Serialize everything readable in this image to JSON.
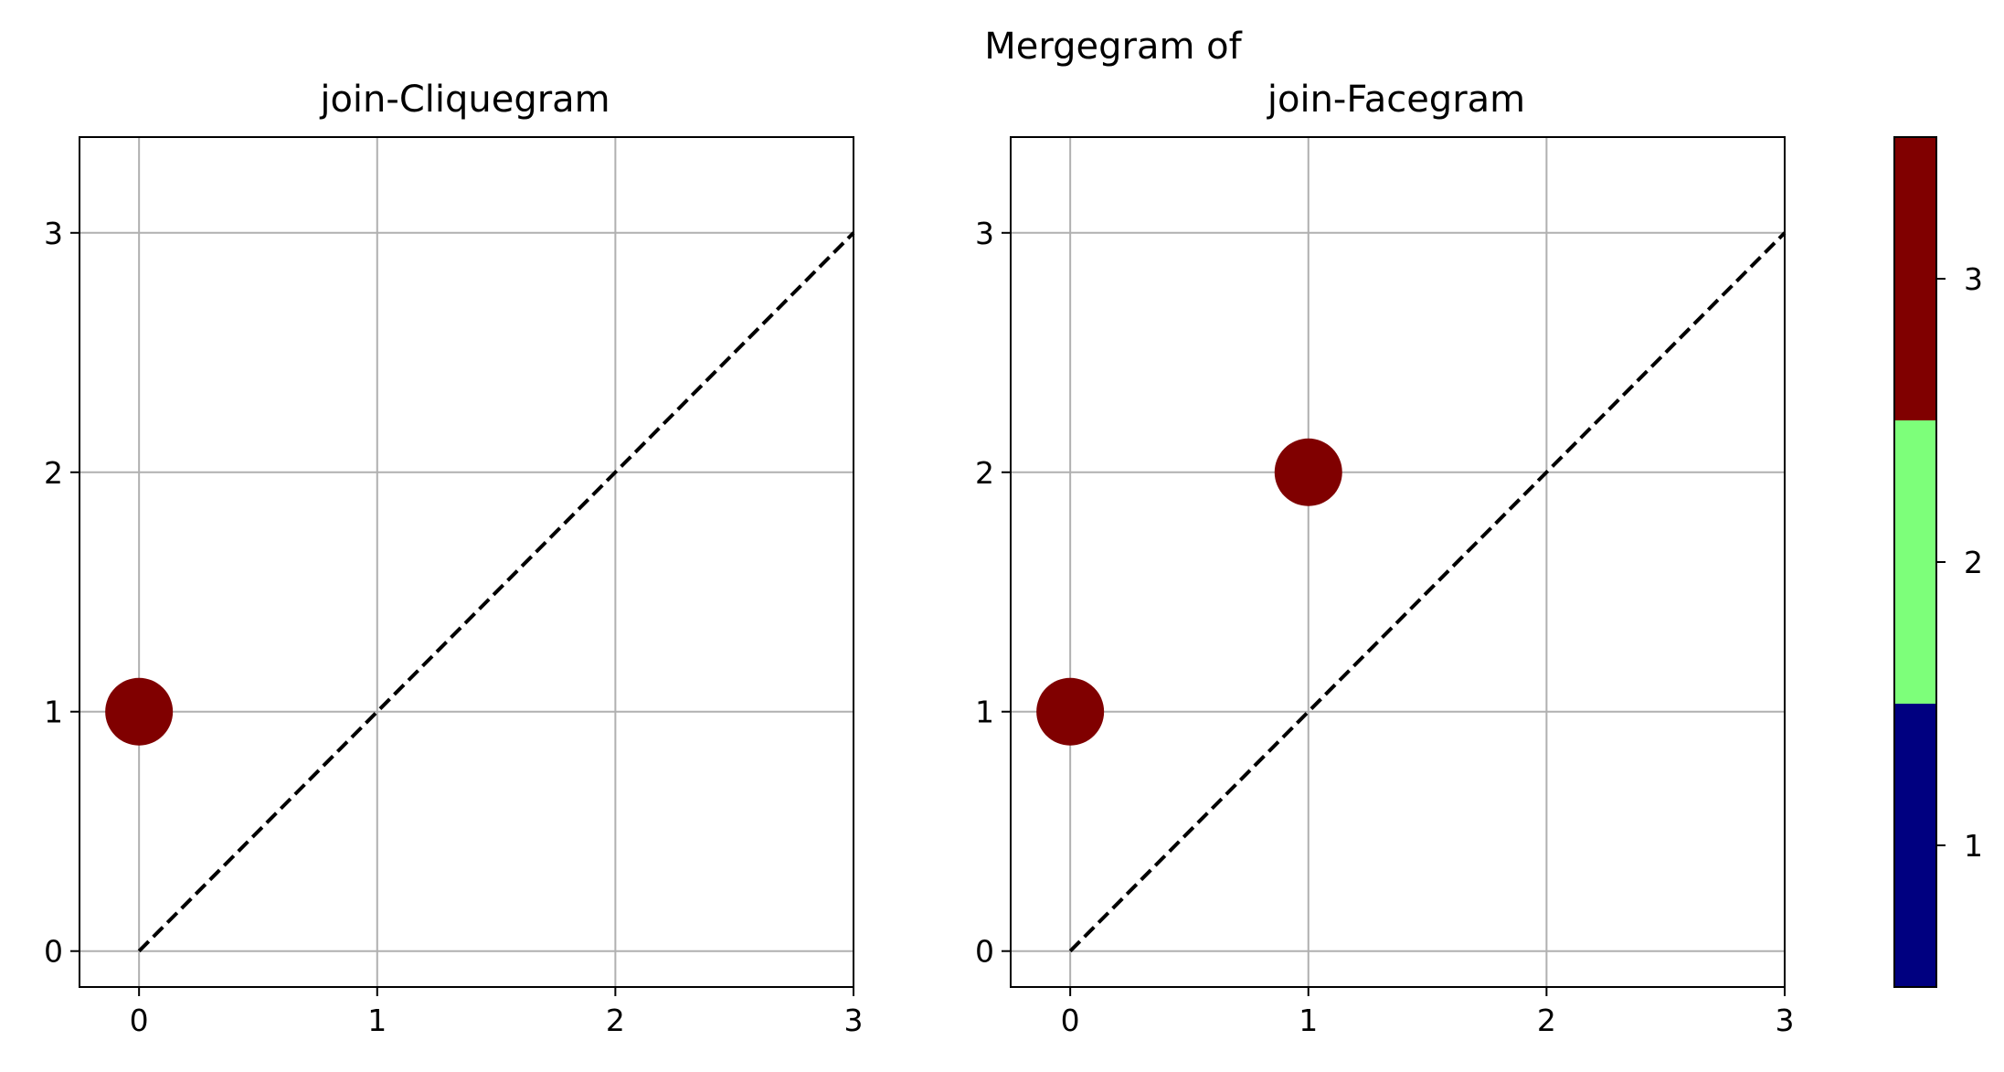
{
  "suptitle": "Mergegram of",
  "chart_data": [
    {
      "type": "scatter",
      "title": "join-Cliquegram",
      "xlabel": "",
      "ylabel": "",
      "xlim": [
        -0.25,
        3
      ],
      "ylim": [
        -0.15,
        3.4
      ],
      "xticks": [
        "0",
        "1",
        "2",
        "3"
      ],
      "yticks": [
        "0",
        "1",
        "2",
        "3"
      ],
      "grid": true,
      "diagonal": true,
      "points": [
        {
          "x": 0,
          "y": 1,
          "value": 3
        }
      ]
    },
    {
      "type": "scatter",
      "title": "join-Facegram",
      "xlabel": "",
      "ylabel": "",
      "xlim": [
        -0.25,
        3
      ],
      "ylim": [
        -0.15,
        3.4
      ],
      "xticks": [
        "0",
        "1",
        "2",
        "3"
      ],
      "yticks": [
        "0",
        "1",
        "2",
        "3"
      ],
      "grid": true,
      "diagonal": true,
      "points": [
        {
          "x": 0,
          "y": 1,
          "value": 3
        },
        {
          "x": 1,
          "y": 2,
          "value": 3
        }
      ]
    }
  ],
  "colorbar": {
    "ticks": [
      "1",
      "2",
      "3"
    ],
    "range": [
      0.5,
      3.5
    ],
    "colors": {
      "1": "#000080",
      "2": "#7dff7a",
      "3": "#800000"
    }
  }
}
